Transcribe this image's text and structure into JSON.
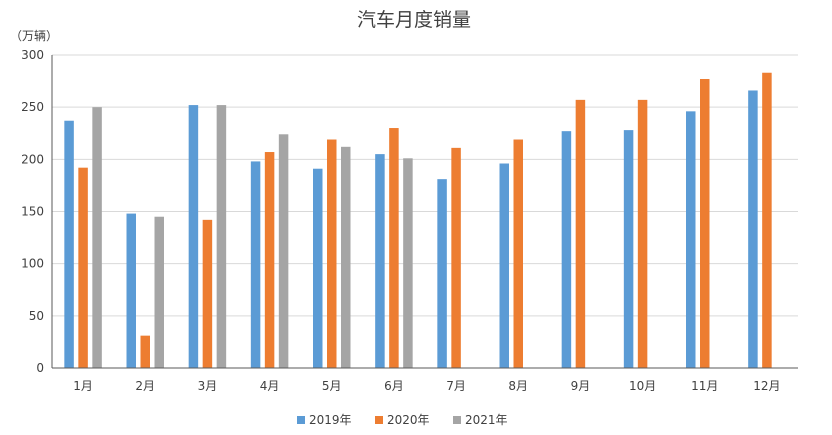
{
  "chart_data": {
    "type": "bar",
    "title": "汽车月度销量",
    "unit_label": "（万辆）",
    "xlabel": "",
    "ylabel": "",
    "ylim": [
      0,
      300
    ],
    "yticks": [
      "0",
      "50",
      "100",
      "150",
      "200",
      "250",
      "300"
    ],
    "grid": true,
    "legend_position": "bottom",
    "categories": [
      "1月",
      "2月",
      "3月",
      "4月",
      "5月",
      "6月",
      "7月",
      "8月",
      "9月",
      "10月",
      "11月",
      "12月"
    ],
    "series": [
      {
        "name": "2019年",
        "color": "#5B9BD5",
        "values": [
          237,
          148,
          252,
          198,
          191,
          205,
          181,
          196,
          227,
          228,
          246,
          266
        ]
      },
      {
        "name": "2020年",
        "color": "#ED7D31",
        "values": [
          192,
          31,
          142,
          207,
          219,
          230,
          211,
          219,
          257,
          257,
          277,
          283
        ]
      },
      {
        "name": "2021年",
        "color": "#A5A5A5",
        "values": [
          250,
          145,
          252,
          224,
          212,
          201,
          null,
          null,
          null,
          null,
          null,
          null
        ]
      }
    ]
  }
}
